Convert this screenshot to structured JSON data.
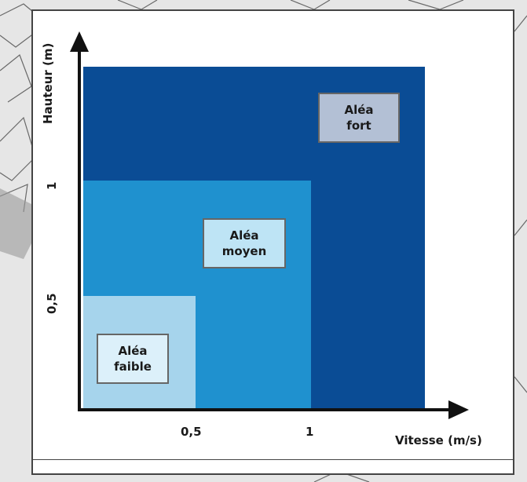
{
  "colors": {
    "fort": "#0a4c95",
    "moyen": "#1f91cf",
    "faible": "#a6d4ec",
    "label_fort_bg": "#b3c0d5",
    "label_moyen_bg": "#bee4f5",
    "label_faible_bg": "#dcf0fa",
    "axis": "#111111"
  },
  "axes": {
    "y_label": "Hauteur (m)",
    "x_label": "Vitesse (m/s)",
    "x_ticks": [
      "0,5",
      "1"
    ],
    "y_ticks": [
      "1",
      "0,5"
    ]
  },
  "zones": {
    "fort": {
      "line1": "Aléa",
      "line2": "fort"
    },
    "moyen": {
      "line1": "Aléa",
      "line2": "moyen"
    },
    "faible": {
      "line1": "Aléa",
      "line2": "faible"
    }
  }
}
